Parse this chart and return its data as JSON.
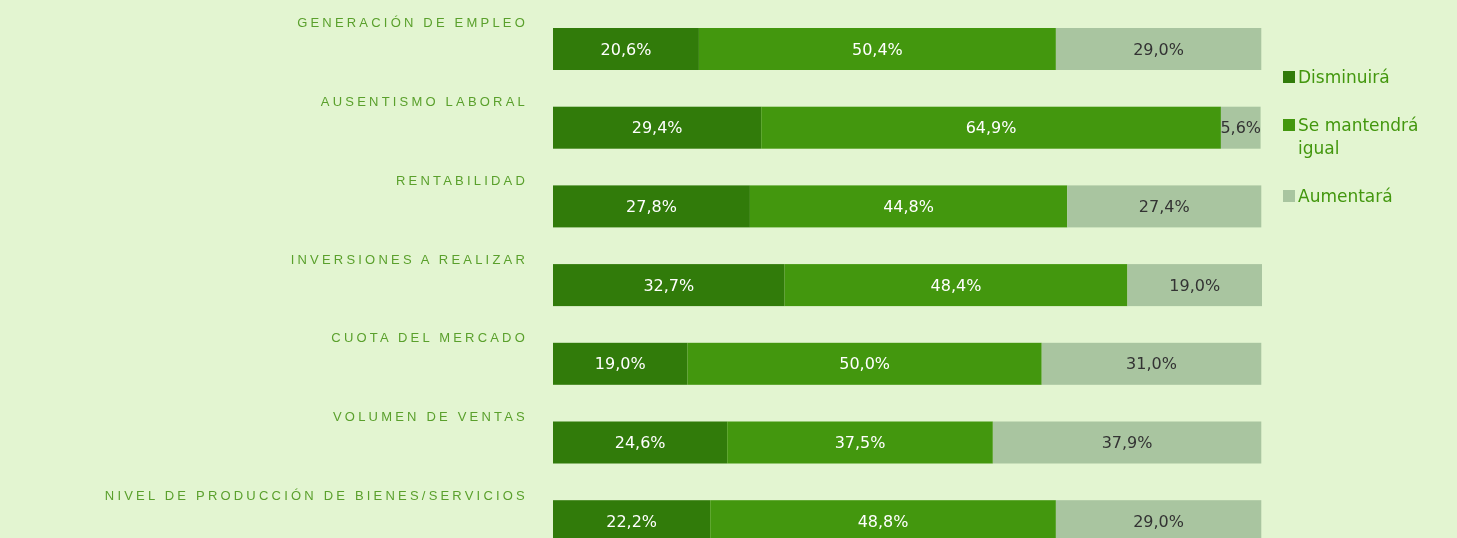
{
  "chart_data": {
    "type": "bar",
    "orientation": "horizontal",
    "stacked": true,
    "legend": "right",
    "categories": [
      "GENERACIÓN DE EMPLEO",
      "AUSENTISMO LABORAL",
      "RENTABILIDAD",
      "INVERSIONES A REALIZAR",
      "CUOTA DEL MERCADO",
      "VOLUMEN DE VENTAS",
      "NIVEL DE PRODUCCIÓN DE BIENES/SERVICIOS"
    ],
    "series": [
      {
        "name": "Disminuirá",
        "color": "#317b0a",
        "values": [
          20.6,
          29.4,
          27.8,
          32.7,
          19.0,
          24.6,
          22.2
        ],
        "value_labels": [
          "20,6%",
          "29,4%",
          "27,8%",
          "32,7%",
          "19,0%",
          "24,6%",
          "22,2%"
        ]
      },
      {
        "name": "Se mantendrá igual",
        "color": "#43970e",
        "values": [
          50.4,
          64.9,
          44.8,
          48.4,
          50.0,
          37.5,
          48.8
        ],
        "value_labels": [
          "50,4%",
          "64,9%",
          "44,8%",
          "48,4%",
          "50,0%",
          "37,5%",
          "48,8%"
        ]
      },
      {
        "name": "Aumentará",
        "color": "#a9c5a0",
        "values": [
          29.0,
          5.6,
          27.4,
          19.0,
          31.0,
          37.9,
          29.0
        ],
        "value_labels": [
          "29,0%",
          "5,6%",
          "27,4%",
          "19,0%",
          "31,0%",
          "37,9%",
          "29,0%"
        ]
      }
    ]
  }
}
